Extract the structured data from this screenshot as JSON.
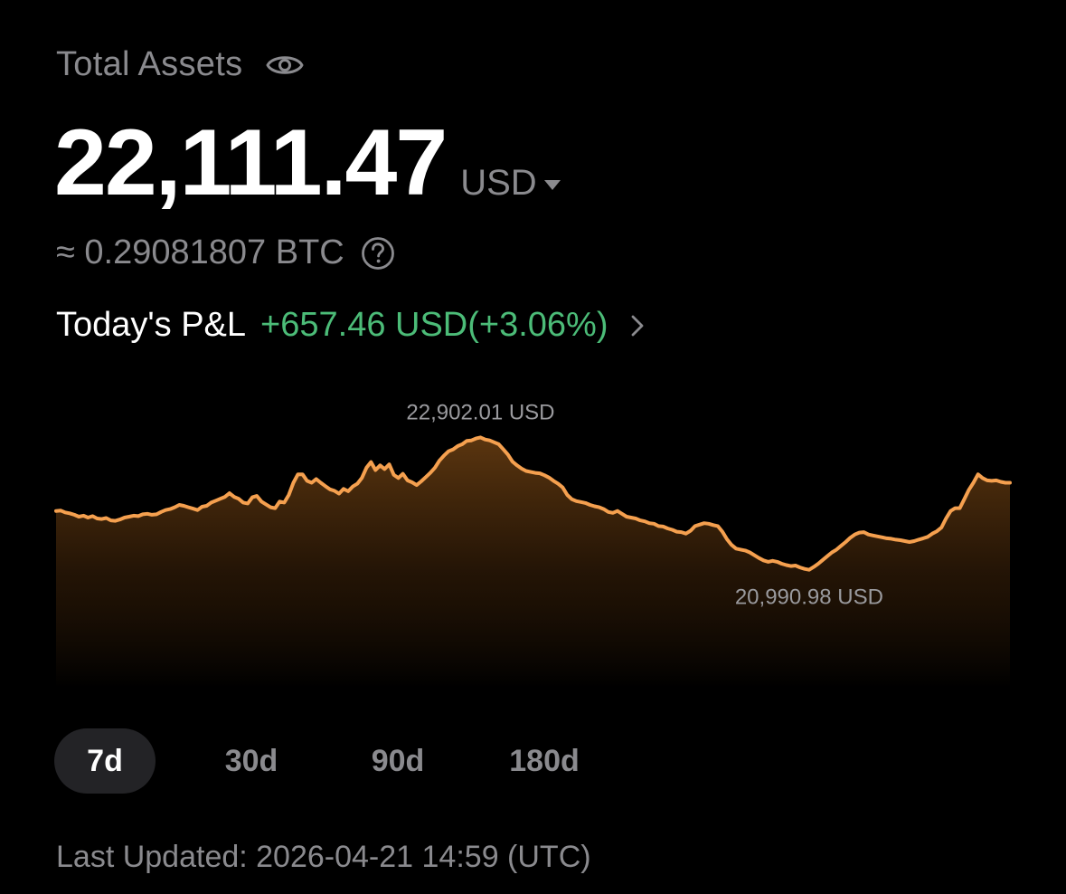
{
  "header": {
    "title": "Total Assets",
    "visibility_icon": "eye-icon"
  },
  "balance": {
    "value": "22,111.47",
    "currency": "USD",
    "dropdown_icon": "caret-down-icon"
  },
  "btc_equivalent": {
    "text": "≈ 0.29081807 BTC",
    "help_icon": "question-circle-icon"
  },
  "pnl": {
    "label": "Today's P&L",
    "value": "+657.46 USD(+3.06%)",
    "color": "#4cbc78",
    "arrow_icon": "chevron-right-icon"
  },
  "chart_data": {
    "type": "area",
    "title": "",
    "xlabel": "",
    "ylabel": "",
    "line_color": "#f5a04f",
    "ylim": [
      20800,
      23050
    ],
    "max_label": "22,902.01 USD",
    "min_label": "20,990.98 USD",
    "max_value": 22902.01,
    "min_value": 20990.98,
    "values": [
      22120,
      22125,
      22105,
      22095,
      22080,
      22060,
      22070,
      22050,
      22065,
      22040,
      22035,
      22045,
      22020,
      22015,
      22030,
      22050,
      22060,
      22070,
      22065,
      22085,
      22090,
      22080,
      22085,
      22110,
      22130,
      22140,
      22160,
      22185,
      22175,
      22160,
      22145,
      22130,
      22165,
      22175,
      22210,
      22230,
      22250,
      22270,
      22310,
      22270,
      22250,
      22210,
      22200,
      22265,
      22280,
      22220,
      22190,
      22160,
      22150,
      22220,
      22210,
      22290,
      22420,
      22510,
      22510,
      22440,
      22420,
      22460,
      22420,
      22385,
      22350,
      22335,
      22305,
      22355,
      22330,
      22380,
      22410,
      22470,
      22580,
      22640,
      22555,
      22605,
      22565,
      22615,
      22505,
      22470,
      22515,
      22445,
      22425,
      22395,
      22435,
      22480,
      22525,
      22580,
      22655,
      22710,
      22755,
      22775,
      22810,
      22830,
      22865,
      22870,
      22890,
      22902,
      22880,
      22870,
      22850,
      22830,
      22775,
      22720,
      22645,
      22605,
      22570,
      22545,
      22535,
      22525,
      22520,
      22500,
      22475,
      22440,
      22410,
      22370,
      22290,
      22245,
      22225,
      22215,
      22205,
      22185,
      22170,
      22160,
      22140,
      22110,
      22100,
      22120,
      22090,
      22060,
      22050,
      22040,
      22020,
      22010,
      21990,
      21985,
      21960,
      21955,
      21935,
      21920,
      21900,
      21895,
      21880,
      21910,
      21960,
      21975,
      21990,
      21985,
      21970,
      21960,
      21900,
      21820,
      21760,
      21720,
      21710,
      21700,
      21680,
      21650,
      21620,
      21595,
      21580,
      21590,
      21580,
      21560,
      21545,
      21535,
      21540,
      21520,
      21505,
      21495,
      21525,
      21560,
      21600,
      21640,
      21680,
      21710,
      21750,
      21790,
      21835,
      21870,
      21890,
      21895,
      21870,
      21860,
      21850,
      21840,
      21830,
      21825,
      21815,
      21810,
      21800,
      21790,
      21800,
      21815,
      21830,
      21845,
      21880,
      21905,
      21945,
      22040,
      22120,
      22150,
      22150,
      22245,
      22345,
      22420,
      22510,
      22470,
      22445,
      22440,
      22445,
      22430,
      22420,
      22420
    ]
  },
  "range_tabs": [
    {
      "label": "7d",
      "active": true
    },
    {
      "label": "30d",
      "active": false
    },
    {
      "label": "90d",
      "active": false
    },
    {
      "label": "180d",
      "active": false
    }
  ],
  "footer": {
    "last_updated": "Last Updated: 2026-04-21 14:59 (UTC)"
  }
}
